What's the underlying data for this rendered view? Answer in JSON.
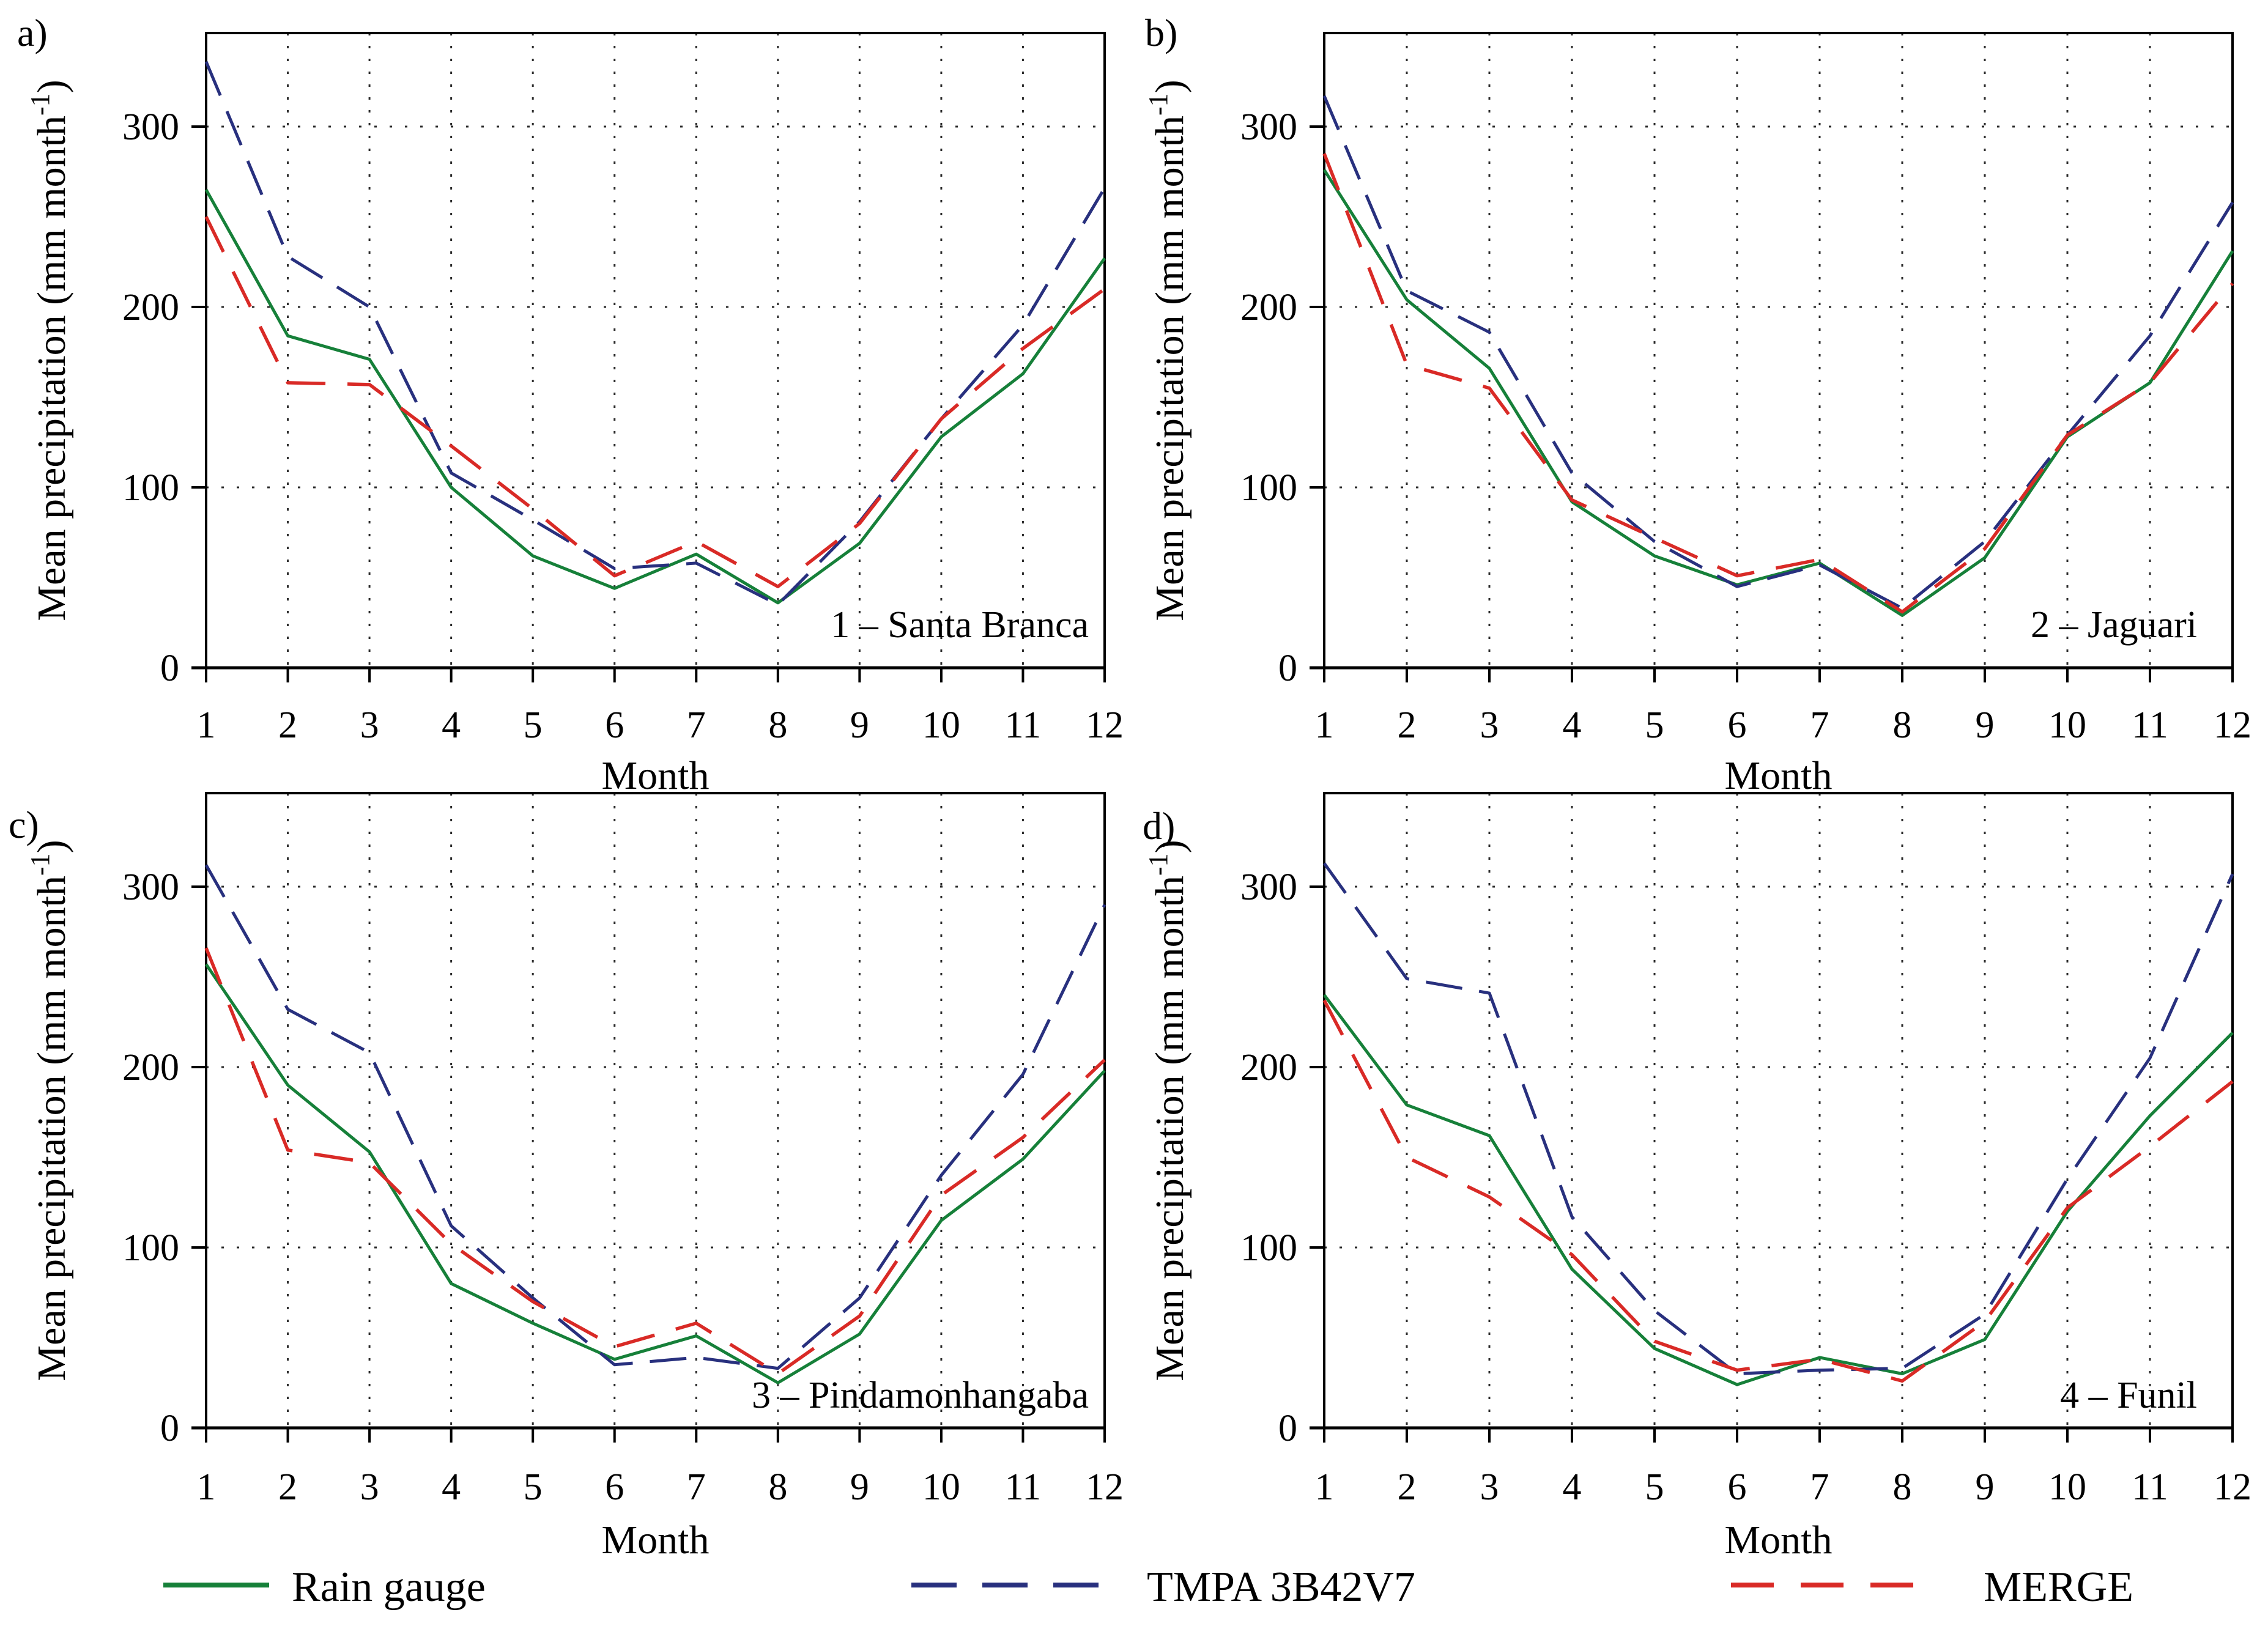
{
  "axes": {
    "xlabel": "Month",
    "ylabel": "Mean precipitation (mm month⁻¹)",
    "xticks": [
      1,
      2,
      3,
      4,
      5,
      6,
      7,
      8,
      9,
      10,
      11,
      12
    ],
    "yticks": [
      0,
      100,
      200,
      300
    ],
    "ylim": [
      0,
      350
    ],
    "grid": "dotted"
  },
  "legend": [
    {
      "label": "Rain gauge",
      "color": "#168039",
      "line_style": "solid"
    },
    {
      "label": "TMPA 3B42V7",
      "color": "#28307e",
      "line_style": "dashed"
    },
    {
      "label": "MERGE",
      "color": "#d92a26",
      "line_style": "dashed"
    }
  ],
  "chart_data": [
    {
      "type": "line",
      "panel_label": "a)",
      "site_label": "1 – Santa Branca",
      "xlabel": "Month",
      "ylabel": "Mean precipitation (mm month⁻¹)",
      "x": [
        1,
        2,
        3,
        4,
        5,
        6,
        7,
        8,
        9,
        10,
        11,
        12
      ],
      "ylim": [
        0,
        350
      ],
      "yticks": [
        0,
        100,
        200,
        300
      ],
      "grid": true,
      "legend_position": "bottom",
      "series": [
        {
          "name": "Rain gauge",
          "values": [
            265,
            184,
            171,
            100,
            62,
            44,
            63,
            36,
            69,
            128,
            163,
            227
          ]
        },
        {
          "name": "TMPA 3B42V7",
          "values": [
            336,
            228,
            200,
            108,
            82,
            55,
            58,
            35,
            81,
            138,
            190,
            266
          ]
        },
        {
          "name": "MERGE",
          "values": [
            250,
            158,
            157,
            123,
            88,
            51,
            70,
            45,
            80,
            138,
            177,
            210
          ]
        }
      ]
    },
    {
      "type": "line",
      "panel_label": "b)",
      "site_label": "2 – Jaguari",
      "xlabel": "Month",
      "ylabel": "Mean precipitation (mm month⁻¹)",
      "x": [
        1,
        2,
        3,
        4,
        5,
        6,
        7,
        8,
        9,
        10,
        11,
        12
      ],
      "ylim": [
        0,
        350
      ],
      "yticks": [
        0,
        100,
        200,
        300
      ],
      "grid": true,
      "legend_position": "bottom",
      "series": [
        {
          "name": "Rain gauge",
          "values": [
            276,
            204,
            166,
            92,
            62,
            46,
            58,
            29,
            61,
            128,
            158,
            231
          ]
        },
        {
          "name": "TMPA 3B42V7",
          "values": [
            317,
            209,
            186,
            108,
            70,
            45,
            57,
            33,
            70,
            129,
            184,
            258
          ]
        },
        {
          "name": "MERGE",
          "values": [
            285,
            168,
            155,
            93,
            72,
            51,
            60,
            31,
            66,
            129,
            158,
            213
          ]
        }
      ]
    },
    {
      "type": "line",
      "panel_label": "c)",
      "site_label": "3 – Pindamonhangaba",
      "xlabel": "Month",
      "ylabel": "Mean precipitation (mm month⁻¹)",
      "x": [
        1,
        2,
        3,
        4,
        5,
        6,
        7,
        8,
        9,
        10,
        11,
        12
      ],
      "ylim": [
        0,
        350
      ],
      "yticks": [
        0,
        100,
        200,
        300
      ],
      "grid": true,
      "legend_position": "bottom",
      "series": [
        {
          "name": "Rain gauge",
          "values": [
            257,
            190,
            153,
            80,
            58,
            38,
            51,
            25,
            52,
            115,
            149,
            198
          ]
        },
        {
          "name": "TMPA 3B42V7",
          "values": [
            312,
            232,
            208,
            112,
            72,
            35,
            39,
            33,
            72,
            140,
            196,
            290
          ]
        },
        {
          "name": "MERGE",
          "values": [
            266,
            154,
            147,
            102,
            70,
            45,
            58,
            30,
            62,
            129,
            161,
            204
          ]
        }
      ]
    },
    {
      "type": "line",
      "panel_label": "d)",
      "site_label": "4 – Funil",
      "xlabel": "Month",
      "ylabel": "Mean precipitation (mm month⁻¹)",
      "x": [
        1,
        2,
        3,
        4,
        5,
        6,
        7,
        8,
        9,
        10,
        11,
        12
      ],
      "ylim": [
        0,
        350
      ],
      "yticks": [
        0,
        100,
        200,
        300
      ],
      "grid": true,
      "legend_position": "bottom",
      "series": [
        {
          "name": "Rain gauge",
          "values": [
            240,
            179,
            162,
            88,
            44,
            24,
            39,
            30,
            49,
            120,
            173,
            219
          ]
        },
        {
          "name": "TMPA 3B42V7",
          "values": [
            313,
            249,
            241,
            117,
            65,
            30,
            32,
            33,
            63,
            138,
            205,
            307
          ]
        },
        {
          "name": "MERGE",
          "values": [
            237,
            150,
            128,
            96,
            48,
            32,
            38,
            26,
            59,
            122,
            156,
            192
          ]
        }
      ]
    }
  ]
}
